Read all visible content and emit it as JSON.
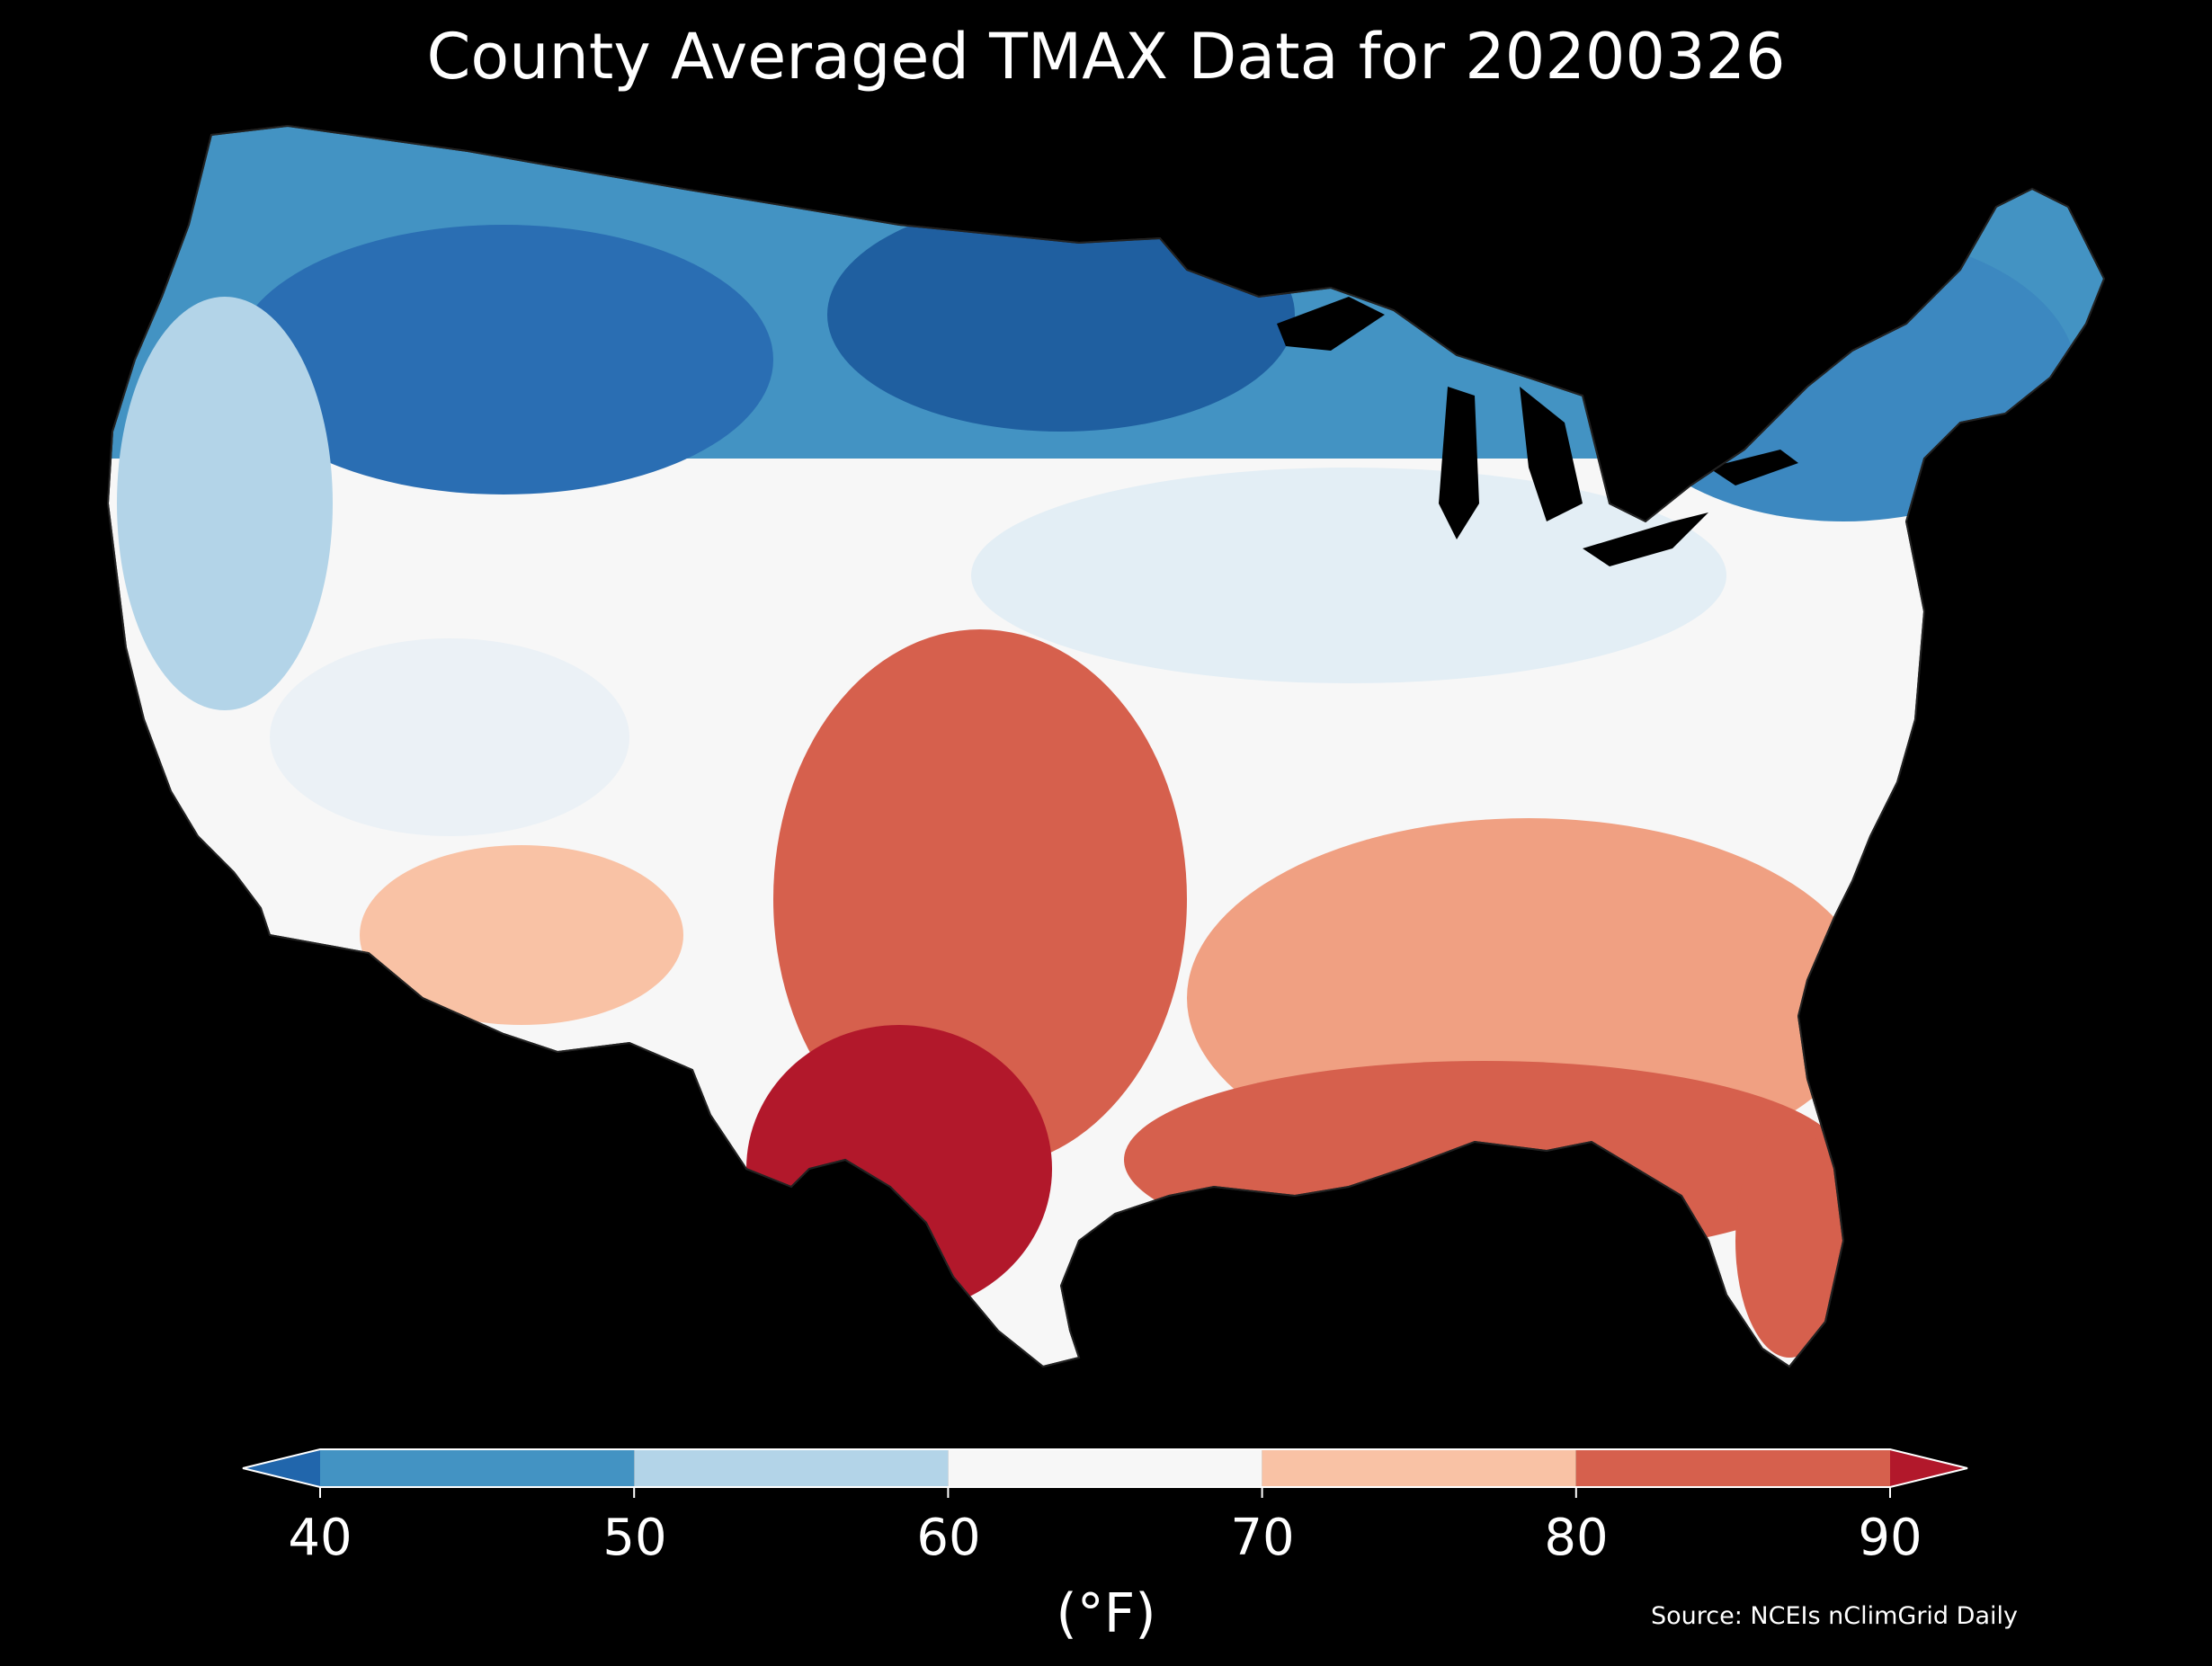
{
  "title": "County Averaged TMAX Data for 20200326",
  "colorbar": {
    "unit_label": "(°F)",
    "ticks": [
      "40",
      "50",
      "60",
      "70",
      "80",
      "90"
    ],
    "bins": [
      {
        "from": null,
        "to": 40,
        "color": "#2166ac"
      },
      {
        "from": 40,
        "to": 50,
        "color": "#4393c3"
      },
      {
        "from": 50,
        "to": 60,
        "color": "#b3d4e8"
      },
      {
        "from": 60,
        "to": 70,
        "color": "#f7f7f7"
      },
      {
        "from": 70,
        "to": 80,
        "color": "#f9c2a5"
      },
      {
        "from": 80,
        "to": 90,
        "color": "#d6604d"
      },
      {
        "from": 90,
        "to": null,
        "color": "#b2182b"
      }
    ]
  },
  "source": "Source: NCEIs nClimGrid Daily"
}
